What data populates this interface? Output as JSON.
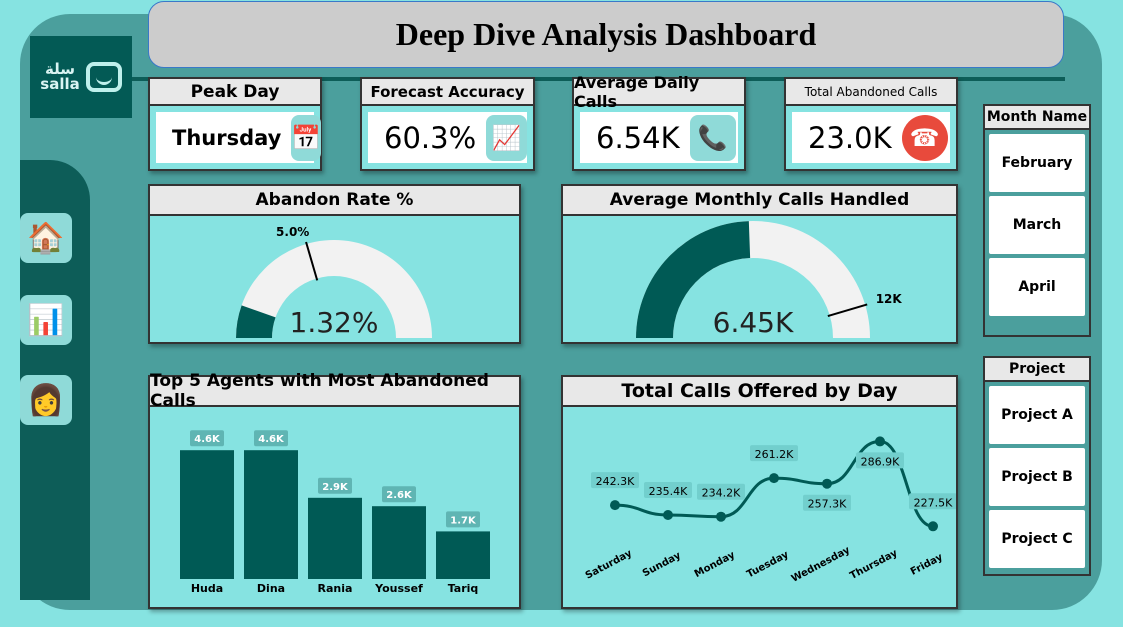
{
  "title": "Deep Dive Analysis Dashboard",
  "logo": {
    "arabic": "سلة",
    "latin": "salla"
  },
  "colors": {
    "dark_teal": "#005a55",
    "light_teal": "#86e3e1",
    "gauge_bg": "#f2f2f2",
    "abandon_red": "#e84a3c"
  },
  "kpis": [
    {
      "label": "Peak Day",
      "value": "Thursday",
      "icon": "calendar-icon"
    },
    {
      "label": "Forecast Accuracy",
      "value": "60.3%",
      "icon": "chart-magnifier-icon"
    },
    {
      "label": "Average Daily Calls",
      "value": "6.54K",
      "icon": "phone-clock-icon"
    },
    {
      "label": "Total Abandoned Calls",
      "value": "23.0K",
      "icon": "hang-up-icon"
    }
  ],
  "nav": [
    {
      "icon": "home-icon"
    },
    {
      "icon": "analytics-gear-icon"
    },
    {
      "icon": "agent-icon"
    }
  ],
  "abandon_gauge": {
    "title": "Abandon Rate %",
    "value": 1.32,
    "value_label": "1.32%",
    "target": 5.0,
    "target_label": "5.0%"
  },
  "calls_gauge": {
    "title": "Average Monthly Calls Handled",
    "value": 6.45,
    "value_label": "6.45K",
    "target": 12,
    "target_label": "12K"
  },
  "chart_data": [
    {
      "type": "bar",
      "title": "Top 5 Agents with Most Abandoned Calls",
      "categories": [
        "Huda",
        "Dina",
        "Rania",
        "Youssef",
        "Tariq"
      ],
      "values": [
        4.6,
        4.6,
        2.9,
        2.6,
        1.7
      ],
      "labels": [
        "4.6K",
        "4.6K",
        "2.9K",
        "2.6K",
        "1.7K"
      ],
      "unit": "K"
    },
    {
      "type": "line",
      "title": "Total Calls Offered by Day",
      "categories": [
        "Saturday",
        "Sunday",
        "Monday",
        "Tuesday",
        "Wednesday",
        "Thursday",
        "Friday"
      ],
      "values": [
        242.3,
        235.4,
        234.2,
        261.2,
        257.3,
        286.9,
        227.5
      ],
      "labels": [
        "242.3K",
        "235.4K",
        "234.2K",
        "261.2K",
        "257.3K",
        "286.9K",
        "227.5K"
      ],
      "unit": "K"
    }
  ],
  "slicers": {
    "month": {
      "title": "Month Name",
      "items": [
        "February",
        "March",
        "April"
      ]
    },
    "project": {
      "title": "Project",
      "items": [
        "Project A",
        "Project B",
        "Project C"
      ]
    }
  }
}
